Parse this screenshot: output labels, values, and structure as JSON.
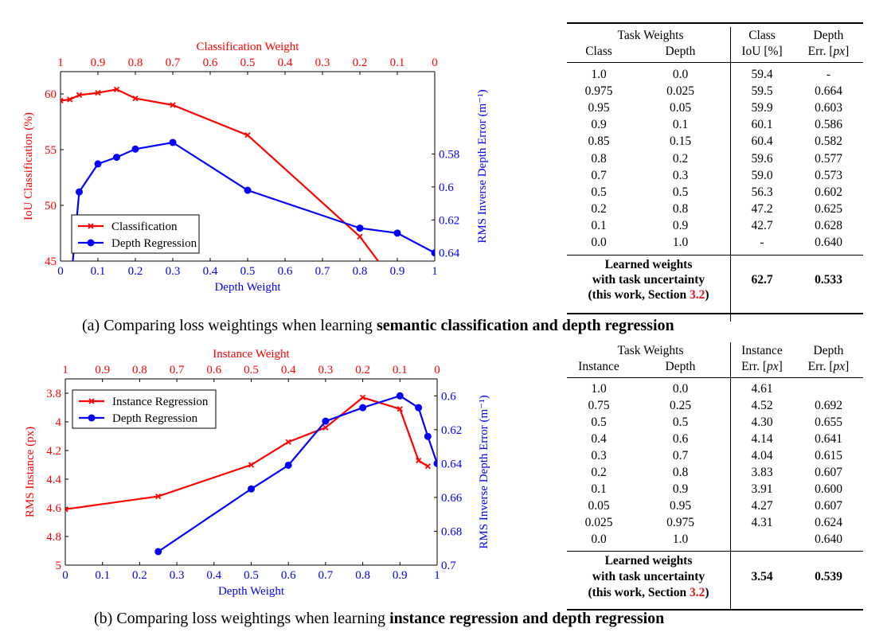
{
  "figure_a": {
    "chart_data": {
      "type": "line",
      "title": "",
      "xlabel": "Depth Weight",
      "x_top_label": "Classification Weight",
      "ylabel_left": "IoU Classification (%)",
      "ylabel_right": "RMS Inverse Depth Error (m⁻¹)",
      "xlim": [
        0,
        1
      ],
      "ylim_left": [
        45,
        62
      ],
      "ylim_right_inverted": [
        0.53,
        0.645
      ],
      "x_ticks": [
        "0",
        "0.1",
        "0.2",
        "0.3",
        "0.4",
        "0.5",
        "0.6",
        "0.7",
        "0.8",
        "0.9",
        "1"
      ],
      "x_top_ticks": [
        "1",
        "0.9",
        "0.8",
        "0.7",
        "0.6",
        "0.5",
        "0.4",
        "0.3",
        "0.2",
        "0.1",
        "0"
      ],
      "y_left_ticks": [
        "45",
        "50",
        "55",
        "60"
      ],
      "y_right_ticks": [
        "0.58",
        "0.6",
        "0.62",
        "0.64"
      ],
      "legend_position": "bottom-left",
      "series": [
        {
          "name": "Classification",
          "axis": "left",
          "color": "#ff0000",
          "marker": "x",
          "x": [
            0,
            0.025,
            0.05,
            0.1,
            0.15,
            0.2,
            0.3,
            0.5,
            0.8,
            0.9
          ],
          "y": [
            59.4,
            59.5,
            59.9,
            60.1,
            60.4,
            59.6,
            59.0,
            56.3,
            47.2,
            42.7
          ]
        },
        {
          "name": "Depth Regression",
          "axis": "right",
          "color": "#0000ff",
          "marker": "o",
          "x": [
            0.025,
            0.05,
            0.1,
            0.15,
            0.2,
            0.3,
            0.5,
            0.8,
            0.9,
            1.0
          ],
          "y": [
            0.664,
            0.603,
            0.586,
            0.582,
            0.577,
            0.573,
            0.602,
            0.625,
            0.628,
            0.64
          ]
        }
      ]
    },
    "table": {
      "group_header": "Task Weights",
      "col1": "Class",
      "col2": "Depth",
      "col3_line1": "Class",
      "col3_line2": "IoU [%]",
      "col4_line1": "Depth",
      "col4_line2_prefix": "Err. [",
      "col4_line2_unit": "px",
      "col4_line2_suffix": "]",
      "rows": [
        [
          "1.0",
          "0.0",
          "59.4",
          "-"
        ],
        [
          "0.975",
          "0.025",
          "59.5",
          "0.664"
        ],
        [
          "0.95",
          "0.05",
          "59.9",
          "0.603"
        ],
        [
          "0.9",
          "0.1",
          "60.1",
          "0.586"
        ],
        [
          "0.85",
          "0.15",
          "60.4",
          "0.582"
        ],
        [
          "0.8",
          "0.2",
          "59.6",
          "0.577"
        ],
        [
          "0.7",
          "0.3",
          "59.0",
          "0.573"
        ],
        [
          "0.5",
          "0.5",
          "56.3",
          "0.602"
        ],
        [
          "0.2",
          "0.8",
          "47.2",
          "0.625"
        ],
        [
          "0.1",
          "0.9",
          "42.7",
          "0.628"
        ],
        [
          "0.0",
          "1.0",
          "-",
          "0.640"
        ]
      ],
      "learned_line1": "Learned weights",
      "learned_line2": "with task uncertainty",
      "learned_line3_prefix": "(this work, Section ",
      "learned_line3_ref": "3.2",
      "learned_line3_suffix": ")",
      "learned_v1": "62.7",
      "learned_v2": "0.533"
    },
    "caption_prefix": "(a) Comparing loss weightings when learning ",
    "caption_bold": "semantic classification and depth regression"
  },
  "figure_b": {
    "chart_data": {
      "type": "line",
      "title": "",
      "xlabel": "Depth Weight",
      "x_top_label": "Instance Weight",
      "ylabel_left": "RMS Instance (px)",
      "ylabel_right": "RMS Inverse Depth Error (m⁻¹)",
      "xlim": [
        0,
        1
      ],
      "ylim_left_inverted": [
        3.7,
        5
      ],
      "ylim_right_inverted": [
        0.59,
        0.7
      ],
      "x_ticks": [
        "0",
        "0.1",
        "0.2",
        "0.3",
        "0.4",
        "0.5",
        "0.6",
        "0.7",
        "0.8",
        "0.9",
        "1"
      ],
      "x_top_ticks": [
        "1",
        "0.9",
        "0.8",
        "0.7",
        "0.6",
        "0.5",
        "0.4",
        "0.3",
        "0.2",
        "0.1",
        "0"
      ],
      "y_left_ticks": [
        "3.8",
        "4",
        "4.2",
        "4.4",
        "4.6",
        "4.8",
        "5"
      ],
      "y_right_ticks": [
        "0.6",
        "0.62",
        "0.64",
        "0.66",
        "0.68",
        "0.7"
      ],
      "legend_position": "top-left",
      "series": [
        {
          "name": "Instance Regression",
          "axis": "left",
          "color": "#ff0000",
          "marker": "x",
          "x": [
            0,
            0.25,
            0.5,
            0.6,
            0.7,
            0.8,
            0.9,
            0.95,
            0.975
          ],
          "y": [
            4.61,
            4.52,
            4.3,
            4.14,
            4.04,
            3.83,
            3.91,
            4.27,
            4.31
          ]
        },
        {
          "name": "Depth Regression",
          "axis": "right",
          "color": "#0000ff",
          "marker": "o",
          "x": [
            0.25,
            0.5,
            0.6,
            0.7,
            0.8,
            0.9,
            0.95,
            0.975,
            1.0
          ],
          "y": [
            0.692,
            0.655,
            0.641,
            0.615,
            0.607,
            0.6,
            0.607,
            0.624,
            0.64
          ]
        }
      ]
    },
    "table": {
      "group_header": "Task Weights",
      "col1": "Instance",
      "col2": "Depth",
      "col3_line1": "Instance",
      "col3_line2_prefix": "Err. [",
      "col3_line2_unit": "px",
      "col3_line2_suffix": "]",
      "col4_line1": "Depth",
      "col4_line2_prefix": "Err. [",
      "col4_line2_unit": "px",
      "col4_line2_suffix": "]",
      "rows": [
        [
          "1.0",
          "0.0",
          "4.61",
          ""
        ],
        [
          "0.75",
          "0.25",
          "4.52",
          "0.692"
        ],
        [
          "0.5",
          "0.5",
          "4.30",
          "0.655"
        ],
        [
          "0.4",
          "0.6",
          "4.14",
          "0.641"
        ],
        [
          "0.3",
          "0.7",
          "4.04",
          "0.615"
        ],
        [
          "0.2",
          "0.8",
          "3.83",
          "0.607"
        ],
        [
          "0.1",
          "0.9",
          "3.91",
          "0.600"
        ],
        [
          "0.05",
          "0.95",
          "4.27",
          "0.607"
        ],
        [
          "0.025",
          "0.975",
          "4.31",
          "0.624"
        ],
        [
          "0.0",
          "1.0",
          "",
          "0.640"
        ]
      ],
      "learned_line1": "Learned weights",
      "learned_line2": "with task uncertainty",
      "learned_line3_prefix": "(this work, Section ",
      "learned_line3_ref": "3.2",
      "learned_line3_suffix": ")",
      "learned_v1": "3.54",
      "learned_v2": "0.539"
    },
    "caption_prefix": "(b) Comparing loss weightings when learning ",
    "caption_bold": "instance regression and depth regression"
  }
}
